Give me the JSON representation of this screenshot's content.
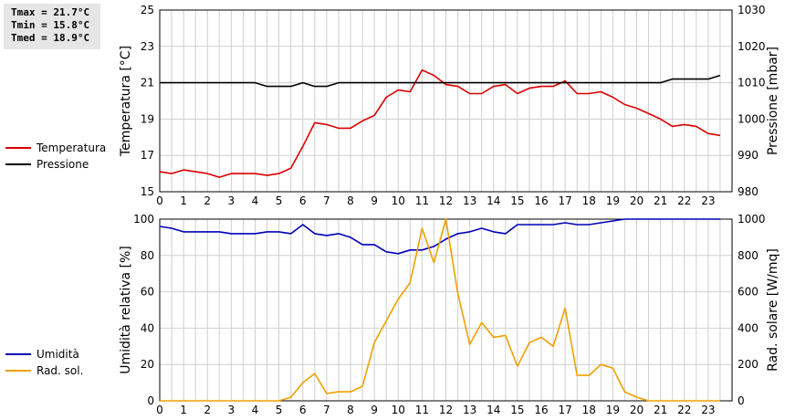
{
  "stats": {
    "tmax": "Tmax = 21.7°C",
    "tmin": "Tmin = 15.8°C",
    "tmed": "Tmed = 18.9°C"
  },
  "legend_top": [
    {
      "label": "Temperatura",
      "color": "#dd0000"
    },
    {
      "label": "Pressione",
      "color": "#000000"
    }
  ],
  "legend_bottom": [
    {
      "label": "Umidità",
      "color": "#0000bb"
    },
    {
      "label": "Rad. sol.",
      "color": "#f0a000"
    }
  ],
  "chart_data": [
    {
      "type": "line",
      "ylabel_left": "Temperatura [°C]",
      "ylabel_right": "Pressione [mbar]",
      "xlim": [
        0,
        24
      ],
      "xticks": [
        0,
        1,
        2,
        3,
        4,
        5,
        6,
        7,
        8,
        9,
        10,
        11,
        12,
        13,
        14,
        15,
        16,
        17,
        18,
        19,
        20,
        21,
        22,
        23
      ],
      "ylim_left": [
        15,
        25
      ],
      "yticks_left": [
        15,
        17,
        19,
        21,
        23,
        25
      ],
      "ylim_right": [
        980,
        1030
      ],
      "yticks_right": [
        980,
        990,
        1000,
        1010,
        1020,
        1030
      ],
      "grid": true,
      "series": [
        {
          "name": "Temperatura",
          "axis": "left",
          "color": "#dd0000",
          "x": [
            0,
            0.5,
            1,
            1.5,
            2,
            2.5,
            3,
            3.5,
            4,
            4.5,
            5,
            5.5,
            6,
            6.5,
            7,
            7.5,
            8,
            8.5,
            9,
            9.5,
            10,
            10.5,
            11,
            11.5,
            12,
            12.5,
            13,
            13.5,
            14,
            14.5,
            15,
            15.5,
            16,
            16.5,
            17,
            17.5,
            18,
            18.5,
            19,
            19.5,
            20,
            20.5,
            21,
            21.5,
            22,
            22.5,
            23,
            23.5
          ],
          "y": [
            16.1,
            16.0,
            16.2,
            16.1,
            16.0,
            15.8,
            16.0,
            16.0,
            16.0,
            15.9,
            16.0,
            16.3,
            17.5,
            18.8,
            18.7,
            18.5,
            18.5,
            18.9,
            19.2,
            20.2,
            20.6,
            20.5,
            21.7,
            21.4,
            20.9,
            20.8,
            20.4,
            20.4,
            20.8,
            20.9,
            20.4,
            20.7,
            20.8,
            20.8,
            21.1,
            20.4,
            20.4,
            20.5,
            20.2,
            19.8,
            19.6,
            19.3,
            19.0,
            18.6,
            18.7,
            18.6,
            18.2,
            18.1
          ]
        },
        {
          "name": "Pressione",
          "axis": "right",
          "color": "#000000",
          "x": [
            0,
            0.5,
            1,
            1.5,
            2,
            2.5,
            3,
            3.5,
            4,
            4.5,
            5,
            5.5,
            6,
            6.5,
            7,
            7.5,
            8,
            8.5,
            9,
            9.5,
            10,
            10.5,
            11,
            11.5,
            12,
            12.5,
            13,
            13.5,
            14,
            14.5,
            15,
            15.5,
            16,
            16.5,
            17,
            17.5,
            18,
            18.5,
            19,
            19.5,
            20,
            20.5,
            21,
            21.5,
            22,
            22.5,
            23,
            23.5
          ],
          "y": [
            1010,
            1010,
            1010,
            1010,
            1010,
            1010,
            1010,
            1010,
            1010,
            1009,
            1009,
            1009,
            1010,
            1009,
            1009,
            1010,
            1010,
            1010,
            1010,
            1010,
            1010,
            1010,
            1010,
            1010,
            1010,
            1010,
            1010,
            1010,
            1010,
            1010,
            1010,
            1010,
            1010,
            1010,
            1010,
            1010,
            1010,
            1010,
            1010,
            1010,
            1010,
            1010,
            1010,
            1011,
            1011,
            1011,
            1011,
            1012
          ]
        }
      ]
    },
    {
      "type": "line",
      "ylabel_left": "Umidità relativa [%]",
      "ylabel_right": "Rad. solare [W/mq]",
      "xlim": [
        0,
        24
      ],
      "xticks": [
        0,
        1,
        2,
        3,
        4,
        5,
        6,
        7,
        8,
        9,
        10,
        11,
        12,
        13,
        14,
        15,
        16,
        17,
        18,
        19,
        20,
        21,
        22,
        23
      ],
      "ylim_left": [
        0,
        100
      ],
      "yticks_left": [
        0,
        20,
        40,
        60,
        80,
        100
      ],
      "ylim_right": [
        0,
        1000
      ],
      "yticks_right": [
        0,
        200,
        400,
        600,
        800,
        1000
      ],
      "grid": true,
      "series": [
        {
          "name": "Umidità",
          "axis": "left",
          "color": "#0000bb",
          "x": [
            0,
            0.5,
            1,
            1.5,
            2,
            2.5,
            3,
            3.5,
            4,
            4.5,
            5,
            5.5,
            6,
            6.5,
            7,
            7.5,
            8,
            8.5,
            9,
            9.5,
            10,
            10.5,
            11,
            11.5,
            12,
            12.5,
            13,
            13.5,
            14,
            14.5,
            15,
            15.5,
            16,
            16.5,
            17,
            17.5,
            18,
            18.5,
            19,
            19.5,
            20,
            20.5,
            21,
            21.5,
            22,
            22.5,
            23,
            23.5
          ],
          "y": [
            96,
            95,
            93,
            93,
            93,
            93,
            92,
            92,
            92,
            93,
            93,
            92,
            97,
            92,
            91,
            92,
            90,
            86,
            86,
            82,
            81,
            83,
            83,
            85,
            89,
            92,
            93,
            95,
            93,
            92,
            97,
            97,
            97,
            97,
            98,
            97,
            97,
            98,
            99,
            100,
            100,
            100,
            100,
            100,
            100,
            100,
            100,
            100
          ]
        },
        {
          "name": "Rad. sol.",
          "axis": "right",
          "color": "#f0a000",
          "x": [
            0,
            0.5,
            1,
            1.5,
            2,
            2.5,
            3,
            3.5,
            4,
            4.5,
            5,
            5.5,
            6,
            6.5,
            7,
            7.5,
            8,
            8.5,
            9,
            9.5,
            10,
            10.5,
            11,
            11.5,
            12,
            12.5,
            13,
            13.5,
            14,
            14.5,
            15,
            15.5,
            16,
            16.5,
            17,
            17.5,
            18,
            18.5,
            19,
            19.5,
            20,
            20.5,
            21,
            21.5,
            22,
            22.5,
            23,
            23.5
          ],
          "y": [
            0,
            0,
            0,
            0,
            0,
            0,
            0,
            0,
            0,
            0,
            0,
            20,
            100,
            150,
            40,
            50,
            50,
            80,
            320,
            440,
            560,
            650,
            950,
            760,
            1000,
            590,
            310,
            430,
            350,
            360,
            190,
            320,
            350,
            300,
            510,
            140,
            140,
            200,
            180,
            50,
            20,
            0,
            0,
            0,
            0,
            0,
            0,
            0
          ]
        }
      ]
    }
  ]
}
